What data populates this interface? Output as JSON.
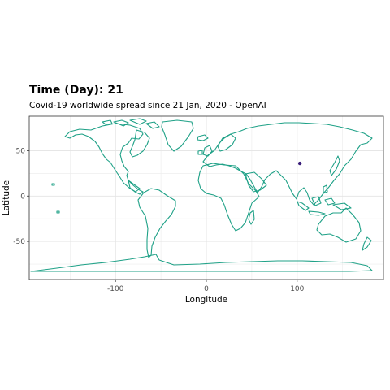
{
  "header": {
    "title": "Time (Day): 21",
    "subtitle": "Covid-19 worldwide spread since 21 Jan, 2020 - OpenAI"
  },
  "axes": {
    "xlabel": "Longitude",
    "ylabel": "Latitude",
    "xlim": [
      -195,
      195
    ],
    "ylim": [
      -92,
      88
    ],
    "xticks": [
      -100,
      0,
      100
    ],
    "yticks": [
      -50,
      0,
      50
    ],
    "xtick_labels": [
      "-100",
      "0",
      "100"
    ],
    "ytick_labels": [
      "-50",
      "0",
      "50"
    ]
  },
  "points": [
    {
      "lon": 103,
      "lat": 36
    }
  ],
  "colors": {
    "land": "#1fa187",
    "point": "#3b1f7a",
    "panel_border": "#333333",
    "grid": "#ebebeb"
  }
}
